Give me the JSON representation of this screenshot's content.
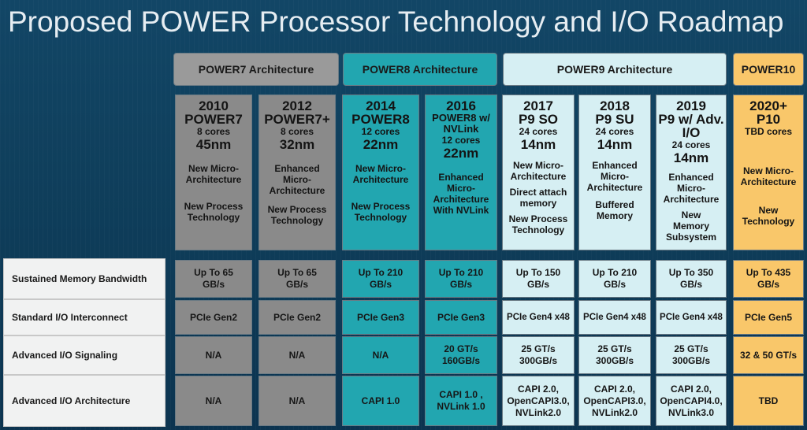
{
  "title": "Proposed POWER Processor Technology and I/O Roadmap",
  "colors": {
    "power7": "#9a9a9a",
    "power8": "#22a6b0",
    "power9": "#d6eff3",
    "power10": "#f9c76a",
    "background": "#124666"
  },
  "families": {
    "p7": "POWER7 Architecture",
    "p8": "POWER8 Architecture",
    "p9": "POWER9 Architecture",
    "p10": "POWER10"
  },
  "columns": [
    {
      "year": "2010",
      "name": "POWER7",
      "cores": "8 cores",
      "nm": "45nm",
      "feat1": "New Micro-Architecture",
      "feat2": "New Process Technology",
      "feat3": ""
    },
    {
      "year": "2012",
      "name": "POWER7+",
      "cores": "8 cores",
      "nm": "32nm",
      "feat1": "Enhanced Micro-Architecture",
      "feat2": "New Process Technology",
      "feat3": ""
    },
    {
      "year": "2014",
      "name": "POWER8",
      "cores": "12 cores",
      "nm": "22nm",
      "feat1": "New Micro-Architecture",
      "feat2": "New Process Technology",
      "feat3": ""
    },
    {
      "year": "2016",
      "name": "POWER8 w/ NVLink",
      "cores": "12 cores",
      "nm": "22nm",
      "feat1": "Enhanced Micro-Architecture With NVLink",
      "feat2": "",
      "feat3": ""
    },
    {
      "year": "2017",
      "name": "P9 SO",
      "cores": "24 cores",
      "nm": "14nm",
      "feat1": "New Micro-Architecture",
      "feat2": "Direct attach memory",
      "feat3": "New Process Technology"
    },
    {
      "year": "2018",
      "name": "P9 SU",
      "cores": "24 cores",
      "nm": "14nm",
      "feat1": "Enhanced Micro-Architecture",
      "feat2": "Buffered Memory",
      "feat3": ""
    },
    {
      "year": "2019",
      "name": "P9 w/ Adv. I/O",
      "cores": "24 cores",
      "nm": "14nm",
      "feat1": "Enhanced Micro-Architecture",
      "feat2": "New Memory Subsystem",
      "feat3": ""
    },
    {
      "year": "2020+",
      "name": "P10",
      "cores": "TBD cores",
      "nm": "",
      "feat1": "New Micro-Architecture",
      "feat2": "New Technology",
      "feat3": ""
    }
  ],
  "rows": [
    {
      "label": "Sustained Memory Bandwidth",
      "values": [
        "Up To 65 GB/s",
        "Up To 65 GB/s",
        "Up To 210 GB/s",
        "Up To 210 GB/s",
        "Up To 150 GB/s",
        "Up To 210 GB/s",
        "Up To 350 GB/s",
        "Up To 435 GB/s"
      ]
    },
    {
      "label": "Standard I/O Interconnect",
      "values": [
        "PCIe Gen2",
        "PCIe Gen2",
        "PCIe Gen3",
        "PCIe Gen3",
        "PCIe Gen4 x48",
        "PCIe Gen4 x48",
        "PCIe Gen4 x48",
        "PCIe Gen5"
      ]
    },
    {
      "label": "Advanced I/O Signaling",
      "values": [
        "N/A",
        "N/A",
        "N/A",
        "20 GT/s 160GB/s",
        "25 GT/s 300GB/s",
        "25 GT/s 300GB/s",
        "25 GT/s 300GB/s",
        "32 & 50 GT/s"
      ]
    },
    {
      "label": "Advanced I/O Architecture",
      "values": [
        "N/A",
        "N/A",
        "CAPI 1.0",
        "CAPI 1.0 , NVLink 1.0",
        "CAPI 2.0, OpenCAPI3.0, NVLink2.0",
        "CAPI 2.0, OpenCAPI3.0, NVLink2.0",
        "CAPI 2.0, OpenCAPI4.0, NVLink3.0",
        "TBD"
      ]
    }
  ]
}
